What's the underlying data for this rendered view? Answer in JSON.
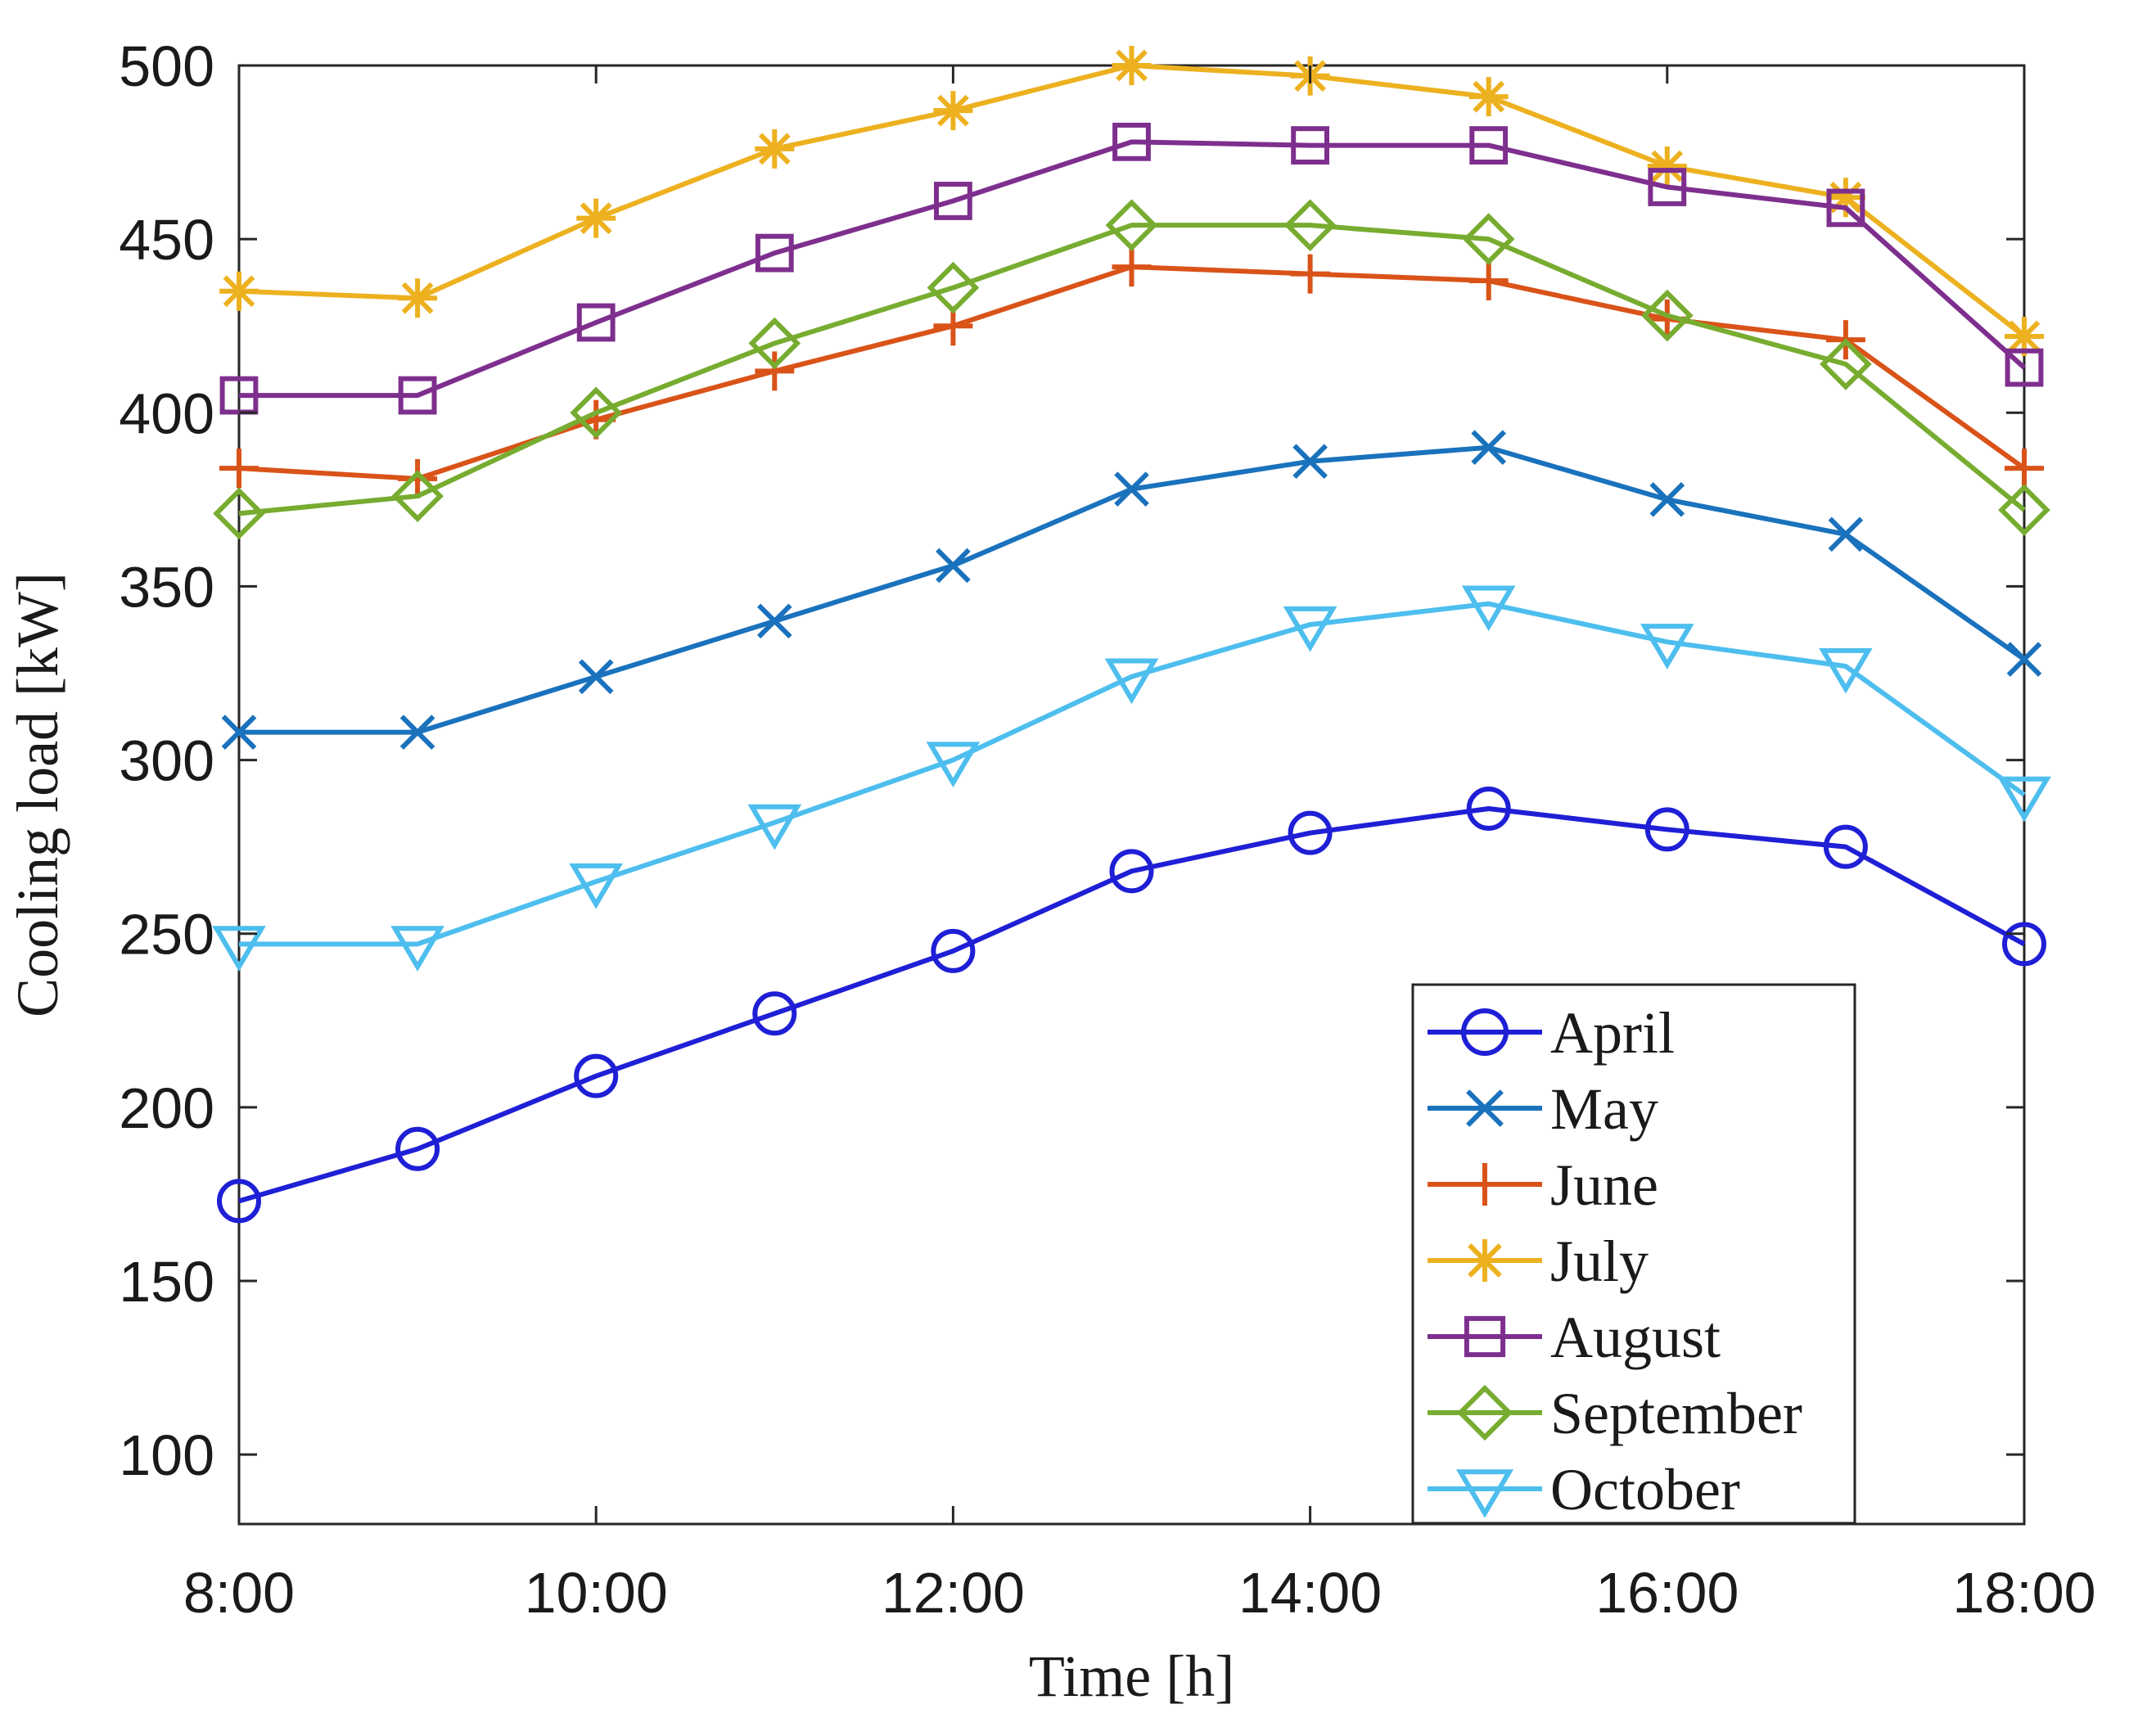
{
  "chart_data": {
    "type": "line",
    "title": "",
    "xlabel": "Time  [h]",
    "ylabel": "Cooling load  [kW]",
    "x": [
      8,
      9,
      10,
      11,
      12,
      13,
      14,
      15,
      16,
      17,
      18
    ],
    "xlim": [
      8,
      18
    ],
    "ylim": [
      80,
      500
    ],
    "xticks": [
      8,
      10,
      12,
      14,
      16,
      18
    ],
    "xtick_labels": [
      "8:00",
      "10:00",
      "12:00",
      "14:00",
      "16:00",
      "18:00"
    ],
    "yticks": [
      100,
      150,
      200,
      250,
      300,
      350,
      400,
      450,
      500
    ],
    "ytick_labels": [
      "100",
      "150",
      "200",
      "250",
      "300",
      "350",
      "400",
      "450",
      "500"
    ],
    "grid": false,
    "legend_position": "bottom-right",
    "series": [
      {
        "name": "April",
        "marker": "circle",
        "color": "#1f1fd6",
        "values": [
          173,
          188,
          209,
          227,
          245,
          268,
          279,
          286,
          280,
          275,
          247
        ]
      },
      {
        "name": "May",
        "marker": "x",
        "color": "#1a72bd",
        "values": [
          308,
          308,
          324,
          340,
          356,
          378,
          386,
          390,
          375,
          365,
          329
        ]
      },
      {
        "name": "June",
        "marker": "plus",
        "color": "#d95319",
        "values": [
          384,
          381,
          398,
          412,
          425,
          442,
          440,
          438,
          427,
          421,
          384
        ]
      },
      {
        "name": "July",
        "marker": "asterisk",
        "color": "#edb120",
        "values": [
          435,
          433,
          456,
          476,
          487,
          500,
          497,
          491,
          471,
          462,
          422
        ]
      },
      {
        "name": "August",
        "marker": "square",
        "color": "#7e2f8e",
        "values": [
          405,
          405,
          426,
          446,
          461,
          478,
          477,
          477,
          465,
          459,
          413
        ]
      },
      {
        "name": "September",
        "marker": "diamond",
        "color": "#77ac30",
        "values": [
          371,
          376,
          400,
          420,
          436,
          454,
          454,
          450,
          428,
          414,
          372
        ]
      },
      {
        "name": "October",
        "marker": "triangle-down",
        "color": "#4dbeee",
        "values": [
          247,
          247,
          265,
          282,
          300,
          324,
          339,
          345,
          334,
          327,
          290
        ]
      }
    ]
  }
}
